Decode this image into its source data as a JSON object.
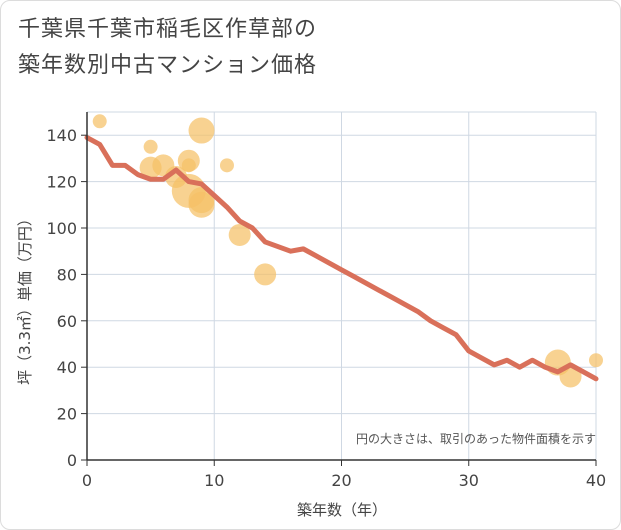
{
  "title_line1": "千葉県千葉市稲毛区作草部の",
  "title_line2": "築年数別中古マンション価格",
  "chart_data": {
    "type": "scatter",
    "xlabel": "築年数（年）",
    "ylabel": "坪（3.3㎡）単価（万円）",
    "xlim": [
      0,
      40
    ],
    "ylim": [
      0,
      150
    ],
    "x_ticks": [
      0,
      10,
      20,
      30,
      40
    ],
    "y_ticks": [
      0,
      20,
      40,
      60,
      80,
      100,
      120,
      140
    ],
    "grid": true,
    "note": "円の大きさは、取引のあった物件面積を示す",
    "colors": {
      "bubble": "#f5c066",
      "line": "#d9705a",
      "grid": "#cfd8e3"
    },
    "bubbles": [
      {
        "x": 1,
        "y": 146,
        "s": 1
      },
      {
        "x": 5,
        "y": 135,
        "s": 1
      },
      {
        "x": 5,
        "y": 126,
        "s": 2
      },
      {
        "x": 6,
        "y": 127,
        "s": 2
      },
      {
        "x": 7,
        "y": 122,
        "s": 2
      },
      {
        "x": 8,
        "y": 129,
        "s": 2
      },
      {
        "x": 8,
        "y": 127,
        "s": 1
      },
      {
        "x": 8,
        "y": 116,
        "s": 4
      },
      {
        "x": 9,
        "y": 142,
        "s": 3
      },
      {
        "x": 9,
        "y": 112,
        "s": 3
      },
      {
        "x": 9,
        "y": 110,
        "s": 3
      },
      {
        "x": 11,
        "y": 127,
        "s": 1
      },
      {
        "x": 12,
        "y": 97,
        "s": 2
      },
      {
        "x": 14,
        "y": 80,
        "s": 2
      },
      {
        "x": 37,
        "y": 42,
        "s": 3
      },
      {
        "x": 38,
        "y": 36,
        "s": 2
      },
      {
        "x": 40,
        "y": 43,
        "s": 1
      }
    ],
    "trend": {
      "x": [
        0,
        1,
        2,
        3,
        4,
        5,
        6,
        7,
        8,
        9,
        10,
        11,
        12,
        13,
        14,
        15,
        16,
        17,
        18,
        19,
        20,
        21,
        22,
        23,
        24,
        25,
        26,
        27,
        28,
        29,
        30,
        31,
        32,
        33,
        34,
        35,
        36,
        37,
        38,
        39,
        40
      ],
      "y": [
        139,
        136,
        127,
        127,
        123,
        121,
        121,
        125,
        120,
        119,
        114,
        109,
        103,
        100,
        94,
        92,
        90,
        91,
        88,
        85,
        82,
        79,
        76,
        73,
        70,
        67,
        64,
        60,
        57,
        54,
        47,
        44,
        41,
        43,
        40,
        43,
        40,
        38,
        41,
        38,
        35
      ]
    }
  }
}
